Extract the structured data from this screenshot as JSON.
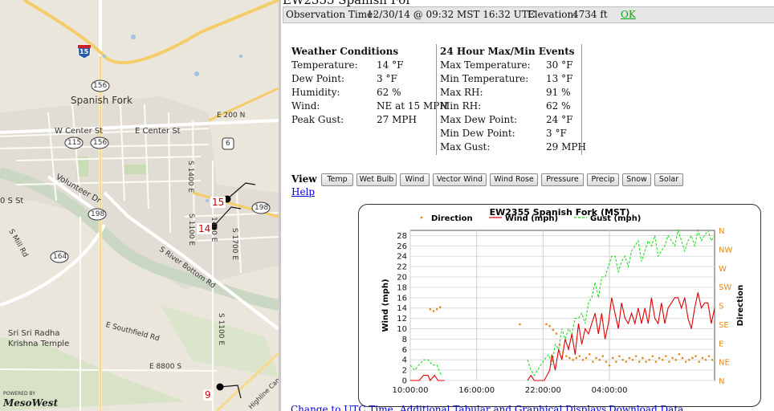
{
  "page_title": "EW2355 Spanish For",
  "observation": {
    "label": "Observation Time:",
    "time": "12/30/14 @ 09:32 MST 16:32 UTC",
    "elevation_label": "Elevation:",
    "elevation": "4734 ft",
    "ok_link": "OK"
  },
  "conditions": {
    "title": "Weather Conditions",
    "rows": [
      {
        "label": "Temperature:",
        "value": "14 °F"
      },
      {
        "label": "Dew Point:",
        "value": "3 °F"
      },
      {
        "label": "Humidity:",
        "value": "62 %"
      },
      {
        "label": "Wind:",
        "value": "NE at 15 MPH"
      },
      {
        "label": "Peak Gust:",
        "value": "27 MPH"
      }
    ]
  },
  "extremes": {
    "title": "24 Hour Max/Min Events",
    "rows": [
      {
        "label": "Max Temperature:",
        "value": "30 °F"
      },
      {
        "label": "Min Temperature:",
        "value": "13 °F"
      },
      {
        "label": "Max RH:",
        "value": "91 %"
      },
      {
        "label": "Min RH:",
        "value": "62 %"
      },
      {
        "label": "Max Dew Point:",
        "value": "24 °F"
      },
      {
        "label": "Min Dew Point:",
        "value": "3 °F"
      },
      {
        "label": "Max Gust:",
        "value": "29 MPH"
      }
    ]
  },
  "view": {
    "label": "View :",
    "buttons": [
      "Temp",
      "Wet Bulb",
      "Wind",
      "Vector Wind",
      "Wind Rose",
      "Pressure",
      "Precip",
      "Snow",
      "Solar"
    ]
  },
  "help_link": "Help",
  "bottom_links": [
    "Change to UTC Time",
    "Additional Tabular and Graphical Displays",
    "Download Data"
  ],
  "map": {
    "city": "Spanish Fork",
    "streets": [
      "W Center St",
      "E Center St",
      "E 200 N",
      "Volunteer Dr",
      "S 1400 E",
      "S 1100 E",
      "1400 E",
      "S 1700 E",
      "S Mill Rd",
      "S River Bottom Rd",
      "E Southfield Rd",
      "E 8800 S",
      "Highline Canal",
      "S 1100 E",
      "0 S St"
    ],
    "route_shields": [
      "15",
      "156",
      "115",
      "156",
      "6",
      "198",
      "198",
      "164"
    ],
    "poi": [
      "Sri Sri Radha",
      "Krishna Temple"
    ],
    "station_labels": [
      "15",
      "14",
      "9"
    ],
    "powered_by": "POWERED BY",
    "brand": "MesoWest"
  },
  "chart_data": {
    "type": "line",
    "title": "EW2355 Spanish Fork (MST)",
    "ylabel": "Wind (mph)",
    "y2label": "Direction",
    "ylim": [
      0,
      29
    ],
    "yticks": [
      0,
      2,
      4,
      6,
      8,
      10,
      12,
      14,
      16,
      18,
      20,
      22,
      24,
      26,
      28
    ],
    "y2ticks": [
      "N",
      "NE",
      "E",
      "SE",
      "S",
      "SW",
      "W",
      "NW",
      "N"
    ],
    "xlim": [
      0,
      27.5
    ],
    "xticks": [
      {
        "x": 0,
        "label": "10:00:00"
      },
      {
        "x": 6,
        "label": "16:00:00"
      },
      {
        "x": 12,
        "label": "22:00:00"
      },
      {
        "x": 18,
        "label": "04:00:00"
      }
    ],
    "legend": [
      "Direction",
      "Wind (mph)",
      "Gust (mph)"
    ],
    "colors": {
      "direction": "#e08a1e",
      "wind": "#dd0000",
      "gust": "#22dd22"
    },
    "wind": [
      [
        0,
        0
      ],
      [
        0.8,
        0
      ],
      [
        1.2,
        1
      ],
      [
        1.6,
        1
      ],
      [
        1.8,
        0
      ],
      [
        2.2,
        1
      ],
      [
        2.5,
        0
      ],
      [
        3.1,
        0
      ],
      [
        10.6,
        0
      ],
      [
        10.9,
        1
      ],
      [
        11.2,
        0
      ],
      [
        12.1,
        0
      ],
      [
        12.6,
        2
      ],
      [
        12.8,
        5
      ],
      [
        13.1,
        2
      ],
      [
        13.4,
        6
      ],
      [
        13.7,
        4
      ],
      [
        14.0,
        8
      ],
      [
        14.3,
        6
      ],
      [
        14.6,
        9
      ],
      [
        14.9,
        5
      ],
      [
        15.2,
        11
      ],
      [
        15.5,
        7
      ],
      [
        15.8,
        10
      ],
      [
        16.1,
        9
      ],
      [
        16.4,
        11
      ],
      [
        16.7,
        13
      ],
      [
        17.0,
        9
      ],
      [
        17.3,
        13
      ],
      [
        17.6,
        8
      ],
      [
        17.9,
        11
      ],
      [
        18.2,
        16
      ],
      [
        18.5,
        13
      ],
      [
        18.8,
        10
      ],
      [
        19.1,
        15
      ],
      [
        19.4,
        12
      ],
      [
        19.7,
        11
      ],
      [
        20.0,
        13
      ],
      [
        20.3,
        11
      ],
      [
        20.6,
        14
      ],
      [
        20.9,
        11
      ],
      [
        21.2,
        14
      ],
      [
        21.5,
        11
      ],
      [
        21.8,
        16
      ],
      [
        22.1,
        12
      ],
      [
        22.4,
        11
      ],
      [
        22.7,
        15
      ],
      [
        23.0,
        11
      ],
      [
        23.3,
        14
      ],
      [
        23.6,
        15
      ],
      [
        23.9,
        16
      ],
      [
        24.2,
        16
      ],
      [
        24.5,
        14
      ],
      [
        24.8,
        16
      ],
      [
        25.1,
        12
      ],
      [
        25.4,
        10
      ],
      [
        25.7,
        14
      ],
      [
        26.0,
        17
      ],
      [
        26.3,
        14
      ],
      [
        26.6,
        15
      ],
      [
        26.9,
        15
      ],
      [
        27.2,
        11
      ],
      [
        27.5,
        14
      ]
    ],
    "gust": [
      [
        0,
        3
      ],
      [
        0.4,
        2
      ],
      [
        0.8,
        3
      ],
      [
        1.2,
        4
      ],
      [
        1.6,
        4
      ],
      [
        2.0,
        3
      ],
      [
        2.4,
        3
      ],
      [
        2.8,
        1
      ],
      [
        10.6,
        4
      ],
      [
        10.9,
        2
      ],
      [
        11.2,
        1
      ],
      [
        12.1,
        4
      ],
      [
        12.5,
        5
      ],
      [
        12.8,
        3
      ],
      [
        13.1,
        7
      ],
      [
        13.4,
        6
      ],
      [
        13.7,
        10
      ],
      [
        14.0,
        8
      ],
      [
        14.3,
        10
      ],
      [
        14.6,
        9
      ],
      [
        14.9,
        12
      ],
      [
        15.2,
        12
      ],
      [
        15.5,
        13
      ],
      [
        15.8,
        11
      ],
      [
        16.1,
        15
      ],
      [
        16.4,
        16
      ],
      [
        16.7,
        19
      ],
      [
        17.0,
        16
      ],
      [
        17.3,
        20
      ],
      [
        17.6,
        20
      ],
      [
        17.9,
        22
      ],
      [
        18.2,
        24
      ],
      [
        18.5,
        24
      ],
      [
        18.8,
        21
      ],
      [
        19.1,
        23
      ],
      [
        19.4,
        24
      ],
      [
        19.7,
        22
      ],
      [
        20.0,
        25
      ],
      [
        20.3,
        26
      ],
      [
        20.6,
        27
      ],
      [
        20.9,
        23
      ],
      [
        21.2,
        25
      ],
      [
        21.5,
        27
      ],
      [
        21.8,
        26
      ],
      [
        22.1,
        28
      ],
      [
        22.4,
        24
      ],
      [
        22.7,
        25
      ],
      [
        23.0,
        26
      ],
      [
        23.3,
        28
      ],
      [
        23.6,
        27
      ],
      [
        23.9,
        26
      ],
      [
        24.2,
        29
      ],
      [
        24.5,
        27
      ],
      [
        24.8,
        25
      ],
      [
        25.1,
        27
      ],
      [
        25.4,
        28
      ],
      [
        25.7,
        26
      ],
      [
        26.0,
        29
      ],
      [
        26.3,
        27
      ],
      [
        26.6,
        28
      ],
      [
        26.9,
        29
      ],
      [
        27.2,
        27
      ],
      [
        27.5,
        28
      ]
    ],
    "direction_units": "compass points (0=N, 2=E, 4=S, 6=W, 8=N)",
    "direction": [
      [
        1.8,
        3.8
      ],
      [
        2.1,
        3.7
      ],
      [
        2.4,
        3.8
      ],
      [
        2.7,
        3.9
      ],
      [
        9.9,
        3.0
      ],
      [
        12.3,
        3.0
      ],
      [
        12.6,
        2.9
      ],
      [
        12.9,
        2.7
      ],
      [
        13.2,
        2.5
      ],
      [
        13.5,
        1.9
      ],
      [
        13.8,
        1.5
      ],
      [
        14.1,
        1.3
      ],
      [
        14.4,
        1.2
      ],
      [
        14.7,
        1.1
      ],
      [
        15.0,
        1.2
      ],
      [
        15.3,
        1.3
      ],
      [
        15.6,
        1.1
      ],
      [
        15.9,
        1.2
      ],
      [
        16.2,
        1.4
      ],
      [
        16.5,
        1.0
      ],
      [
        16.8,
        1.2
      ],
      [
        17.1,
        1.1
      ],
      [
        17.4,
        1.3
      ],
      [
        17.7,
        1.0
      ],
      [
        18.0,
        0.8
      ],
      [
        18.3,
        1.2
      ],
      [
        18.6,
        1.0
      ],
      [
        18.9,
        1.3
      ],
      [
        19.2,
        1.1
      ],
      [
        19.5,
        1.0
      ],
      [
        19.8,
        1.2
      ],
      [
        20.1,
        1.1
      ],
      [
        20.4,
        1.3
      ],
      [
        20.7,
        1.0
      ],
      [
        21.0,
        1.2
      ],
      [
        21.3,
        1.0
      ],
      [
        21.6,
        1.1
      ],
      [
        21.9,
        1.3
      ],
      [
        22.2,
        1.0
      ],
      [
        22.5,
        1.2
      ],
      [
        22.8,
        1.1
      ],
      [
        23.1,
        1.3
      ],
      [
        23.4,
        1.0
      ],
      [
        23.7,
        1.2
      ],
      [
        24.0,
        1.1
      ],
      [
        24.3,
        1.4
      ],
      [
        24.6,
        1.2
      ],
      [
        24.9,
        1.0
      ],
      [
        25.2,
        1.1
      ],
      [
        25.5,
        1.2
      ],
      [
        25.8,
        1.3
      ],
      [
        26.1,
        1.0
      ],
      [
        26.4,
        1.2
      ],
      [
        26.7,
        1.1
      ],
      [
        27.0,
        1.3
      ],
      [
        27.3,
        1.1
      ]
    ]
  }
}
